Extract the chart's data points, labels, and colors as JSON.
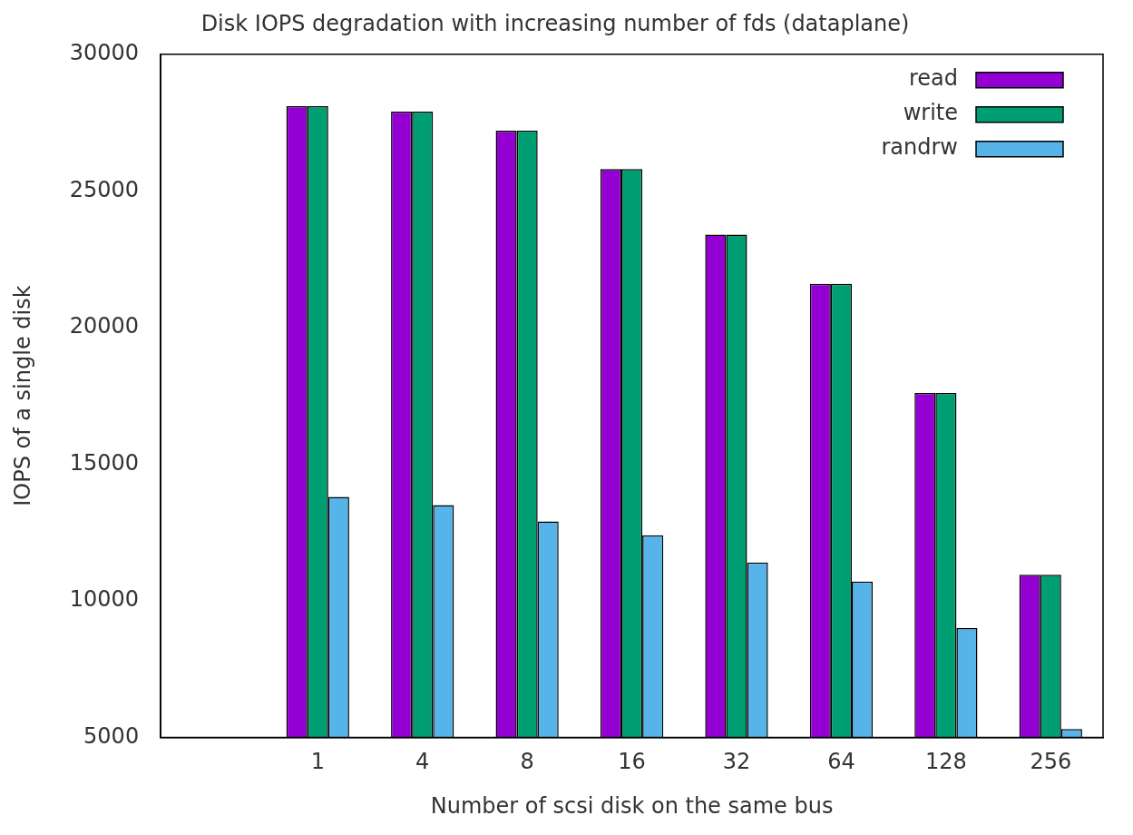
{
  "chart_data": {
    "type": "bar",
    "title": "Disk IOPS degradation with increasing number of fds (dataplane)",
    "xlabel": "Number of scsi disk on the same bus",
    "ylabel": "IOPS of a single disk",
    "categories": [
      null,
      "1",
      "4",
      "8",
      "16",
      "32",
      "64",
      "128",
      "256"
    ],
    "series": [
      {
        "name": "read",
        "color": "#9400d3",
        "values": [
          null,
          28100,
          27900,
          27200,
          25800,
          23400,
          21600,
          17600,
          10950
        ]
      },
      {
        "name": "write",
        "color": "#009e73",
        "values": [
          null,
          28100,
          27900,
          27200,
          25800,
          23400,
          21600,
          17600,
          10950
        ]
      },
      {
        "name": "randrw",
        "color": "#56b4e9",
        "values": [
          null,
          13800,
          13500,
          12900,
          12400,
          11400,
          10700,
          9000,
          5300
        ]
      }
    ],
    "ylim": [
      5000,
      30000
    ],
    "yticks": [
      5000,
      10000,
      15000,
      20000,
      25000,
      30000
    ],
    "grid": false,
    "legend": "top right"
  }
}
